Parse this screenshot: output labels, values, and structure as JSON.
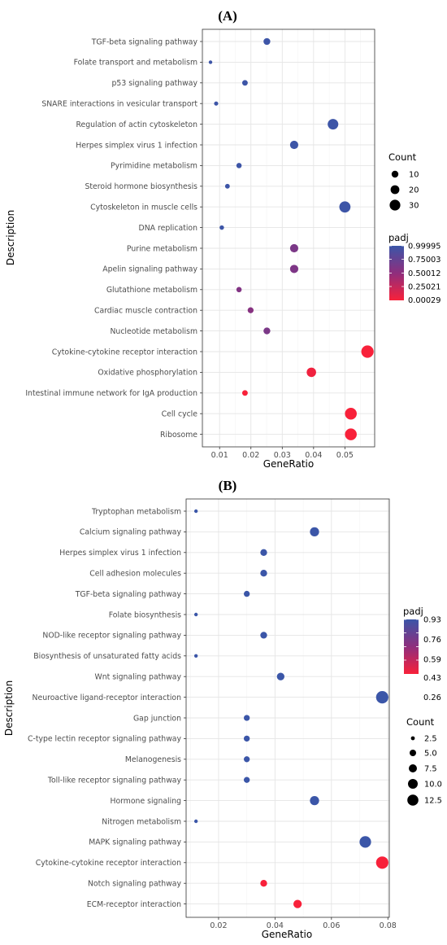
{
  "chart_data": [
    {
      "type": "scatter",
      "title": "(A)",
      "xlabel": "GeneRatio",
      "ylabel": "Description",
      "xlim": [
        0.0045,
        0.0595
      ],
      "xticks": [
        0.01,
        0.02,
        0.03,
        0.04,
        0.05
      ],
      "xtick_labels": [
        "0.01",
        "0.02",
        "0.03",
        "0.04",
        "0.05"
      ],
      "grid": true,
      "categories": [
        "TGF-beta signaling pathway",
        "Folate transport and metabolism",
        "p53 signaling pathway",
        "SNARE interactions in vesicular transport",
        "Regulation of actin cytoskeleton",
        "Herpes simplex virus 1 infection",
        "Pyrimidine metabolism",
        "Steroid hormone biosynthesis",
        "Cytoskeleton in muscle cells",
        "DNA replication",
        "Purine metabolism",
        "Apelin signaling pathway",
        "Glutathione metabolism",
        "Cardiac muscle contraction",
        "Nucleotide metabolism",
        "Cytokine-cytokine receptor interaction",
        "Oxidative phosphorylation",
        "Intestinal immune network for IgA production",
        "Cell cycle",
        "Ribosome"
      ],
      "points": [
        {
          "x": 0.0251,
          "count": 15,
          "padj": 0.99
        },
        {
          "x": 0.0071,
          "count": 4,
          "padj": 0.99
        },
        {
          "x": 0.0181,
          "count": 11,
          "padj": 0.99
        },
        {
          "x": 0.0089,
          "count": 6,
          "padj": 0.99
        },
        {
          "x": 0.0462,
          "count": 28,
          "padj": 0.99
        },
        {
          "x": 0.0338,
          "count": 20,
          "padj": 0.99
        },
        {
          "x": 0.0162,
          "count": 10,
          "padj": 0.99
        },
        {
          "x": 0.0125,
          "count": 8,
          "padj": 0.99
        },
        {
          "x": 0.05,
          "count": 30,
          "padj": 0.99
        },
        {
          "x": 0.0107,
          "count": 7,
          "padj": 0.99
        },
        {
          "x": 0.0338,
          "count": 20,
          "padj": 0.62
        },
        {
          "x": 0.0338,
          "count": 20,
          "padj": 0.6
        },
        {
          "x": 0.0162,
          "count": 10,
          "padj": 0.58
        },
        {
          "x": 0.0199,
          "count": 12,
          "padj": 0.55
        },
        {
          "x": 0.0251,
          "count": 15,
          "padj": 0.62
        },
        {
          "x": 0.0572,
          "count": 34,
          "padj": 0.00029
        },
        {
          "x": 0.0393,
          "count": 24,
          "padj": 0.04
        },
        {
          "x": 0.0181,
          "count": 11,
          "padj": 0.00029
        },
        {
          "x": 0.0519,
          "count": 32,
          "padj": 0.00029
        },
        {
          "x": 0.0519,
          "count": 32,
          "padj": 0.00029
        }
      ],
      "size_legend": {
        "title": "Count",
        "values": [
          10,
          20,
          30
        ],
        "labels": [
          "10",
          "20",
          "30"
        ],
        "range": [
          4,
          34
        ]
      },
      "color_legend": {
        "title": "padj",
        "labels": [
          "0.99995",
          "0.75003",
          "0.50012",
          "0.25021",
          "0.00029"
        ],
        "values": [
          0.99995,
          0.75003,
          0.50012,
          0.25021,
          0.00029
        ],
        "low_color": "#f8213a",
        "high_color": "#3b56a8"
      }
    },
    {
      "type": "scatter",
      "title": "(B)",
      "xlabel": "GeneRatio",
      "ylabel": "Description",
      "xlim": [
        0.0085,
        0.0805
      ],
      "xticks": [
        0.02,
        0.04,
        0.06,
        0.08
      ],
      "xtick_labels": [
        "0.02",
        "0.04",
        "0.06",
        "0.08"
      ],
      "grid": true,
      "categories": [
        "Tryptophan metabolism",
        "Calcium signaling pathway",
        "Herpes simplex virus 1 infection",
        "Cell adhesion molecules",
        "TGF-beta signaling pathway",
        "Folate biosynthesis",
        "NOD-like receptor signaling pathway",
        "Biosynthesis of unsaturated fatty acids",
        "Wnt signaling pathway",
        "Neuroactive ligand-receptor interaction",
        "Gap junction",
        "C-type lectin receptor signaling pathway",
        "Melanogenesis",
        "Toll-like receptor signaling pathway",
        "Hormone signaling",
        "Nitrogen metabolism",
        "MAPK signaling pathway",
        "Cytokine-cytokine receptor interaction",
        "Notch signaling pathway",
        "ECM-receptor interaction"
      ],
      "points": [
        {
          "x": 0.012,
          "count": 2,
          "padj": 0.93
        },
        {
          "x": 0.054,
          "count": 9,
          "padj": 0.93
        },
        {
          "x": 0.036,
          "count": 6,
          "padj": 0.93
        },
        {
          "x": 0.036,
          "count": 6,
          "padj": 0.93
        },
        {
          "x": 0.03,
          "count": 5,
          "padj": 0.93
        },
        {
          "x": 0.012,
          "count": 2,
          "padj": 0.93
        },
        {
          "x": 0.036,
          "count": 6,
          "padj": 0.93
        },
        {
          "x": 0.012,
          "count": 2,
          "padj": 0.93
        },
        {
          "x": 0.042,
          "count": 7,
          "padj": 0.93
        },
        {
          "x": 0.078,
          "count": 13,
          "padj": 0.93
        },
        {
          "x": 0.03,
          "count": 5,
          "padj": 0.93
        },
        {
          "x": 0.03,
          "count": 5,
          "padj": 0.93
        },
        {
          "x": 0.03,
          "count": 5,
          "padj": 0.93
        },
        {
          "x": 0.03,
          "count": 5,
          "padj": 0.93
        },
        {
          "x": 0.054,
          "count": 9,
          "padj": 0.93
        },
        {
          "x": 0.012,
          "count": 2,
          "padj": 0.93
        },
        {
          "x": 0.072,
          "count": 12,
          "padj": 0.93
        },
        {
          "x": 0.078,
          "count": 13,
          "padj": 0.26
        },
        {
          "x": 0.036,
          "count": 6,
          "padj": 0.26
        },
        {
          "x": 0.048,
          "count": 8,
          "padj": 0.26
        }
      ],
      "size_legend": {
        "title": "Count",
        "values": [
          2.5,
          5.0,
          7.5,
          10.0,
          12.5
        ],
        "labels": [
          "2.5",
          "5.0",
          "7.5",
          "10.0",
          "12.5"
        ],
        "range": [
          2,
          13
        ]
      },
      "color_legend": {
        "title": "padj",
        "labels": [
          "0.93",
          "0.76",
          "0.59",
          "0.43",
          "0.26"
        ],
        "values": [
          0.93,
          0.76,
          0.59,
          0.43,
          0.26
        ],
        "low_color": "#f8213a",
        "high_color": "#3b56a8"
      }
    }
  ]
}
